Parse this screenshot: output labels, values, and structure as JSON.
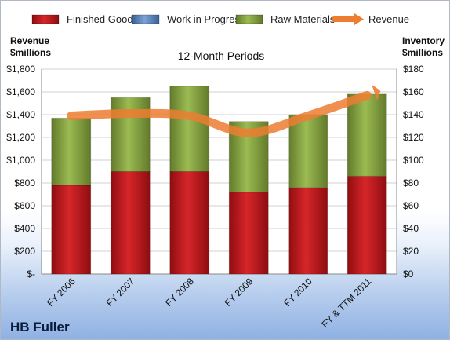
{
  "chart_data": {
    "type": "bar",
    "title": "12-Month Periods",
    "left_axis_title": [
      "Revenue",
      "$millions"
    ],
    "right_axis_title": [
      "Inventory",
      "$millions"
    ],
    "brand": "HB Fuller",
    "categories": [
      "FY 2006",
      "FY 2007",
      "FY 2008",
      "FY 2009",
      "FY 2010",
      "FY & TTM 2011"
    ],
    "left_ticks": [
      "$-",
      "$200",
      "$400",
      "$600",
      "$800",
      "$1,000",
      "$1,200",
      "$1,400",
      "$1,600",
      "$1,800"
    ],
    "right_ticks": [
      "$0",
      "$20",
      "$40",
      "$60",
      "$80",
      "$100",
      "$120",
      "$140",
      "$160",
      "$180"
    ],
    "ylim_left": [
      0,
      1800
    ],
    "ylim_right": [
      0,
      180
    ],
    "legend_position": "top",
    "series": [
      {
        "name": "Finished Goods",
        "kind": "bar",
        "axis": "right",
        "color": "#c0181c",
        "values": [
          78,
          90,
          90,
          72,
          76,
          86
        ]
      },
      {
        "name": "Work in Progress",
        "kind": "bar",
        "axis": "right",
        "color": "#4f81bd",
        "values": [
          0,
          0,
          0,
          0,
          0,
          0
        ]
      },
      {
        "name": "Raw Materials",
        "kind": "bar",
        "axis": "right",
        "color": "#8aa83e",
        "values": [
          59,
          65,
          75,
          62,
          64,
          72
        ]
      },
      {
        "name": "Revenue",
        "kind": "line",
        "axis": "left",
        "color": "#ed7d31",
        "values": [
          1390,
          1410,
          1390,
          1240,
          1390,
          1570
        ]
      }
    ]
  }
}
